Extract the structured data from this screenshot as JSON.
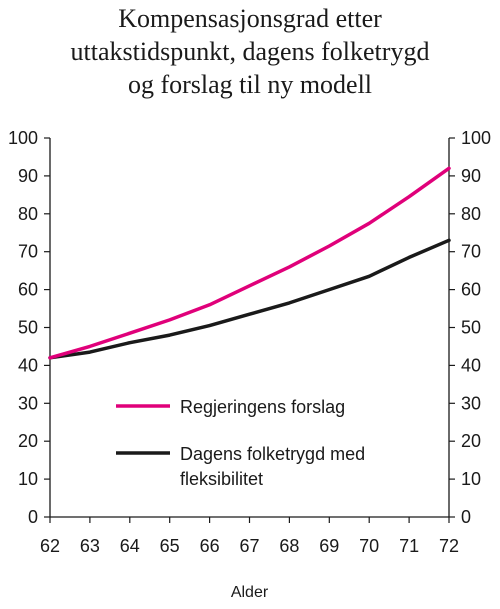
{
  "chart_data": {
    "type": "line",
    "title_lines": [
      "Kompensasjonsgrad etter",
      "uttakstidspunkt, dagens folketrygd",
      "og forslag til ny modell"
    ],
    "xlabel": "Alder",
    "ylabel": "",
    "x": [
      62,
      63,
      64,
      65,
      66,
      67,
      68,
      69,
      70,
      71,
      72
    ],
    "xlim": [
      62,
      72
    ],
    "ylim": [
      0,
      100
    ],
    "yticks": [
      0,
      10,
      20,
      30,
      40,
      50,
      60,
      70,
      80,
      90,
      100
    ],
    "x_tick_labels": [
      "62",
      "63",
      "64",
      "65",
      "66",
      "67",
      "68",
      "69",
      "70",
      "71",
      "72"
    ],
    "y_tick_labels": [
      "0",
      "10",
      "20",
      "30",
      "40",
      "50",
      "60",
      "70",
      "80",
      "90",
      "100"
    ],
    "grid": false,
    "dual_y_axis": true,
    "legend_position": "center-right",
    "series": [
      {
        "name": "Regjeringens forslag",
        "legend_lines": [
          "Regjeringens forslag"
        ],
        "color": "#e0007a",
        "values": [
          42,
          45,
          48.5,
          52,
          56,
          61,
          66,
          71.5,
          77.5,
          84.5,
          92
        ]
      },
      {
        "name": "Dagens folketrygd med fleksibilitet",
        "legend_lines": [
          "Dagens folketrygd med",
          "fleksibilitet"
        ],
        "color": "#1a1a1a",
        "values": [
          42,
          43.5,
          46,
          48,
          50.5,
          53.5,
          56.5,
          60,
          63.5,
          68.5,
          73
        ]
      }
    ]
  }
}
